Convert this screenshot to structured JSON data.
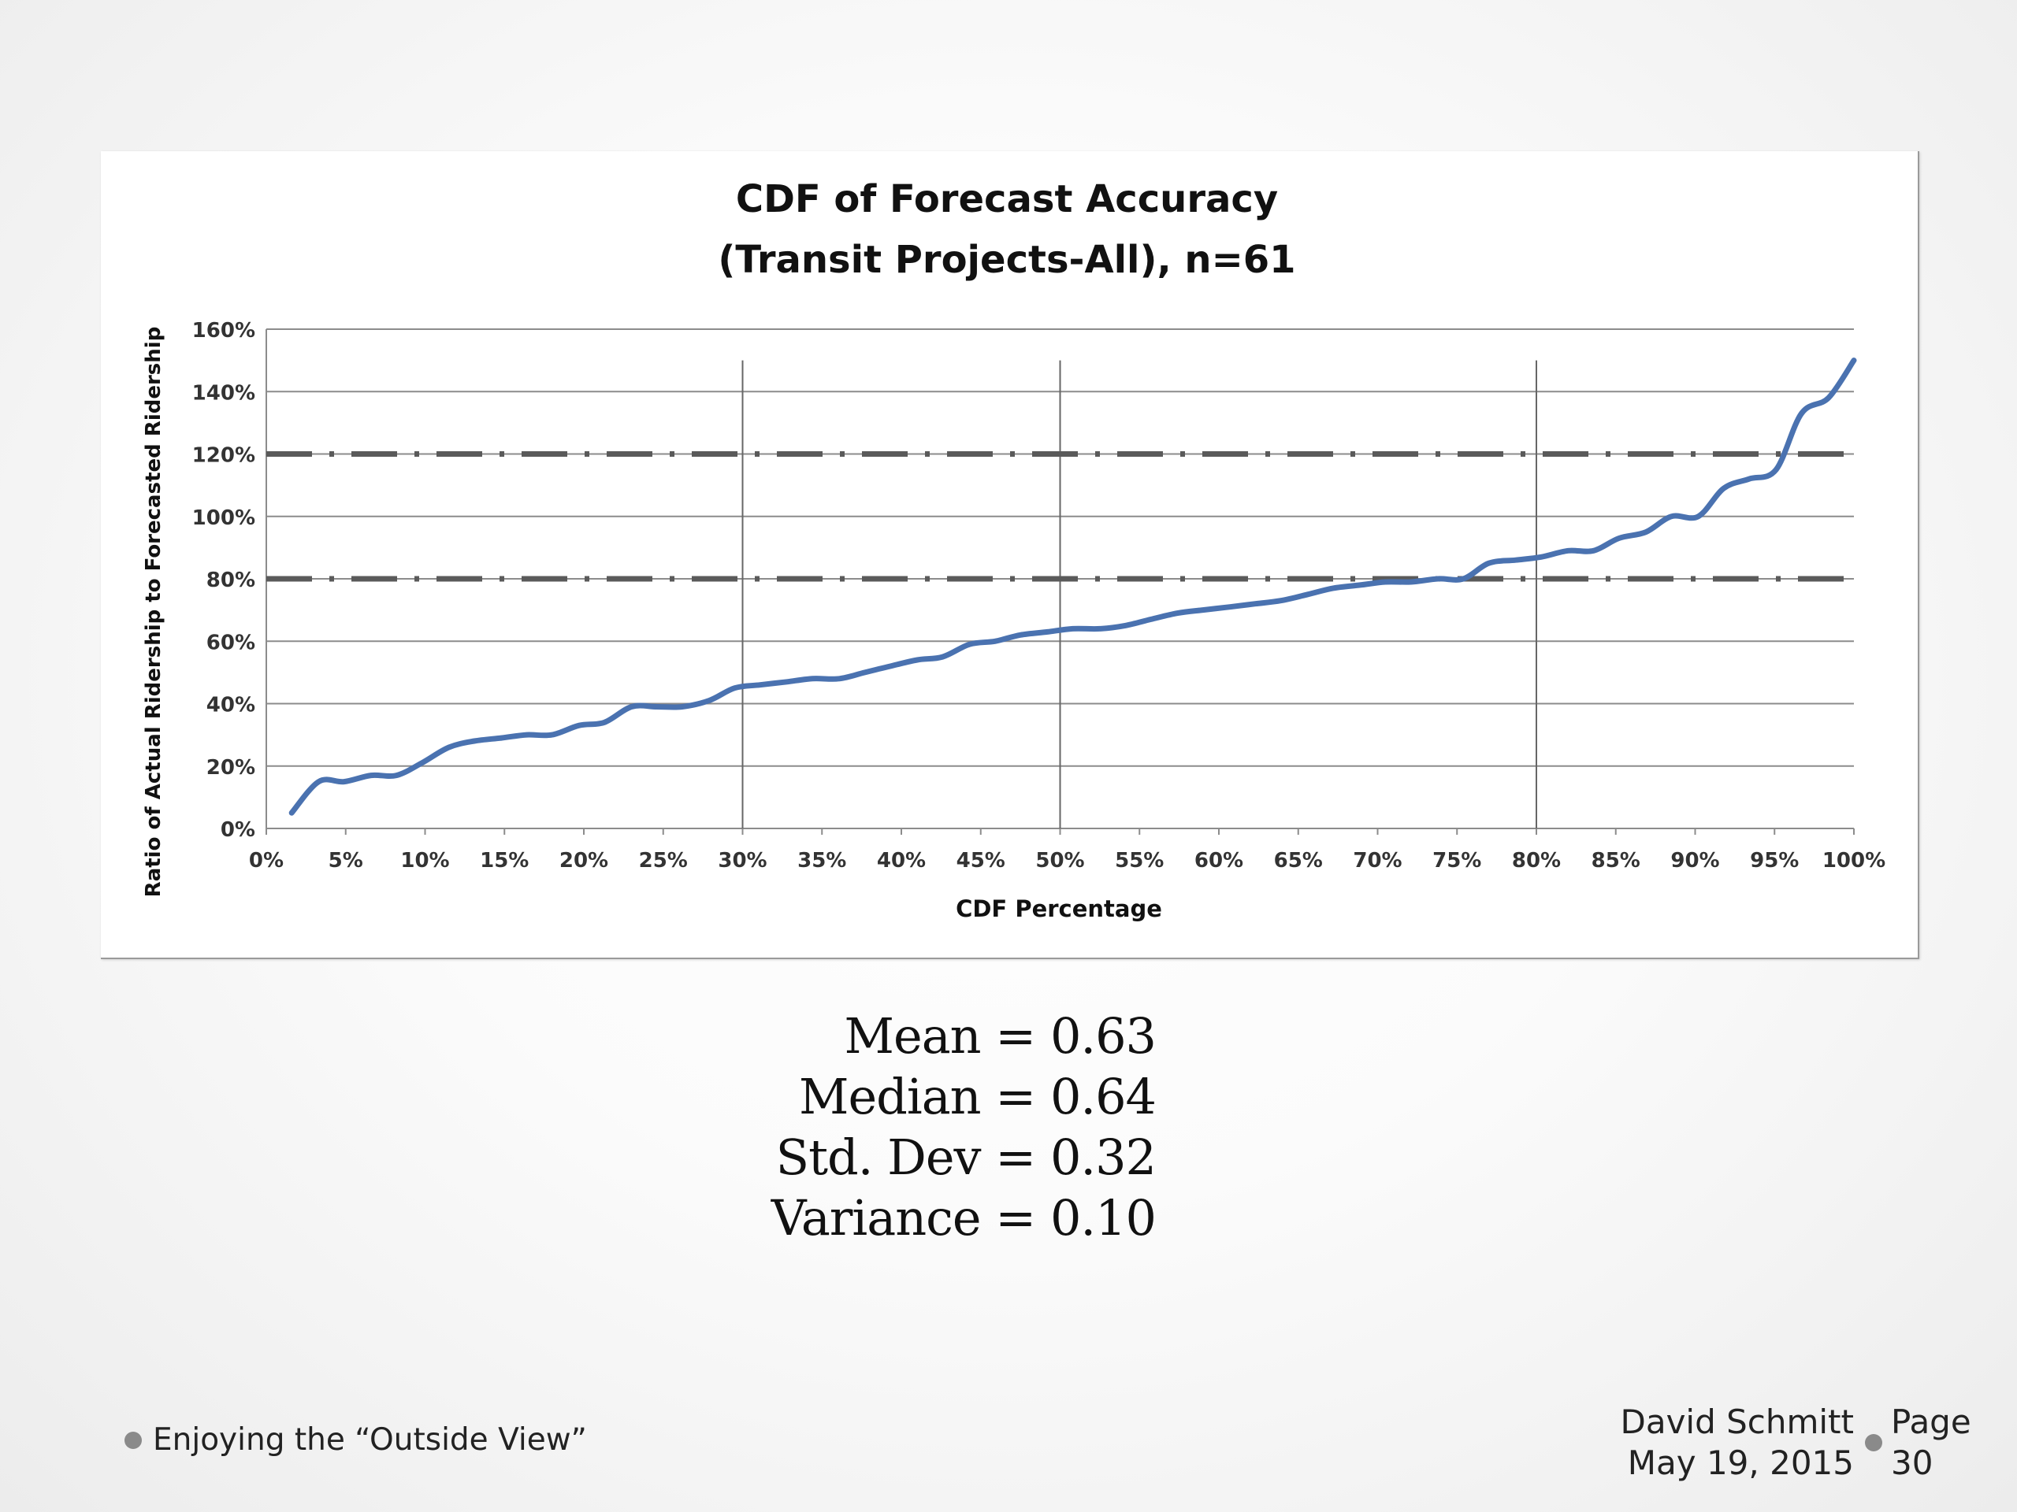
{
  "chart_data": {
    "type": "line",
    "title": [
      "CDF of Forecast Accuracy",
      "(Transit Projects-All), n=61"
    ],
    "xlabel": "CDF Percentage",
    "ylabel": "Ratio of Actual Ridership to Forecasted Ridership",
    "xlim": [
      0,
      100
    ],
    "ylim": [
      0,
      160
    ],
    "x_ticks": [
      "0%",
      "5%",
      "10%",
      "15%",
      "20%",
      "25%",
      "30%",
      "35%",
      "40%",
      "45%",
      "50%",
      "55%",
      "60%",
      "65%",
      "70%",
      "75%",
      "80%",
      "85%",
      "90%",
      "95%",
      "100%"
    ],
    "y_ticks": [
      "0%",
      "20%",
      "40%",
      "60%",
      "80%",
      "100%",
      "120%",
      "140%",
      "160%"
    ],
    "gridlines": "horizontal every 20%",
    "reference_lines_x": [
      30,
      50,
      80
    ],
    "reference_lines_y": [
      80,
      120
    ],
    "series": [
      {
        "color": "#4a72b0",
        "x": [
          1.6,
          3.3,
          4.9,
          6.6,
          8.2,
          9.8,
          11.5,
          13.1,
          14.8,
          16.4,
          18.0,
          19.7,
          21.3,
          23.0,
          24.6,
          26.2,
          27.9,
          29.5,
          31.1,
          32.8,
          34.4,
          36.1,
          37.7,
          39.3,
          41.0,
          42.6,
          44.3,
          45.9,
          47.5,
          49.2,
          50.8,
          52.5,
          54.1,
          55.7,
          57.4,
          59.0,
          60.7,
          62.3,
          63.9,
          65.6,
          67.2,
          68.9,
          70.5,
          72.1,
          73.8,
          75.4,
          77.0,
          78.7,
          80.3,
          82.0,
          83.6,
          85.2,
          86.9,
          88.5,
          90.2,
          91.8,
          93.4,
          95.1,
          96.7,
          98.4,
          100.0
        ],
        "y": [
          5,
          15,
          15,
          17,
          17,
          21,
          26,
          28,
          29,
          30,
          30,
          33,
          34,
          39,
          39,
          39,
          41,
          45,
          46,
          47,
          48,
          48,
          50,
          52,
          54,
          55,
          59,
          60,
          62,
          63,
          64,
          64,
          65,
          67,
          69,
          70,
          71,
          72,
          73,
          75,
          77,
          78,
          79,
          79,
          80,
          80,
          85,
          86,
          87,
          89,
          89,
          93,
          95,
          100,
          100,
          109,
          112,
          115,
          133,
          138,
          150
        ]
      }
    ]
  },
  "stats": [
    "Mean = 0.63",
    "Median = 0.64",
    "Std. Dev = 0.32",
    "Variance = 0.10"
  ],
  "footer": {
    "presentation_title": "Enjoying the “Outside View”",
    "author": "David Schmitt",
    "date": "May 19, 2015",
    "page_label": "Page",
    "page_number": "30"
  }
}
